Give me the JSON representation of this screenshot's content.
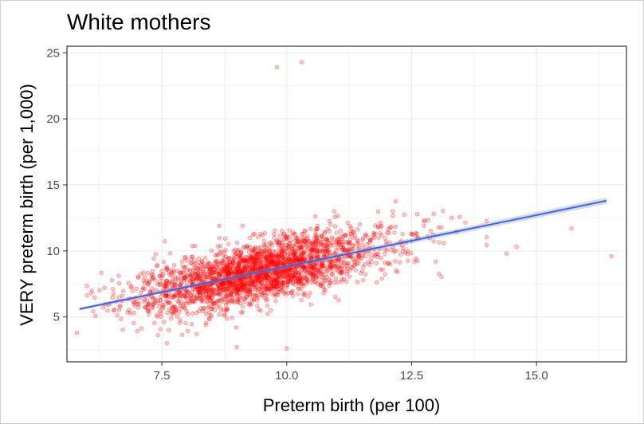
{
  "chart_data": {
    "type": "scatter",
    "title": "White mothers",
    "xlabel": "Preterm birth (per 100)",
    "ylabel": "VERY preterm birth (per 1,000)",
    "xlim": [
      5.6,
      16.8
    ],
    "ylim": [
      1.6,
      25.5
    ],
    "x_ticks": [
      7.5,
      10.0,
      12.5,
      15.0
    ],
    "x_tick_labels": [
      "7.5",
      "10.0",
      "12.5",
      "15.0"
    ],
    "y_ticks": [
      5,
      10,
      15,
      20,
      25
    ],
    "y_tick_labels": [
      "5",
      "10",
      "15",
      "20",
      "25"
    ],
    "grid": true,
    "point_color": "#ff0000",
    "line_color": "#3366ff",
    "trend_line": {
      "x": [
        5.85,
        16.4
      ],
      "y": [
        5.6,
        13.8
      ],
      "method": "linear fit"
    },
    "points_summary": {
      "approx_count": 2500,
      "center_x": 9.3,
      "center_y": 8.5
    },
    "outliers": [
      {
        "x": 9.8,
        "y": 23.9
      },
      {
        "x": 10.3,
        "y": 24.3
      },
      {
        "x": 16.5,
        "y": 9.6
      },
      {
        "x": 15.7,
        "y": 11.7
      },
      {
        "x": 14.6,
        "y": 10.3
      },
      {
        "x": 5.8,
        "y": 3.8
      },
      {
        "x": 9.0,
        "y": 2.7
      },
      {
        "x": 10.0,
        "y": 2.6
      },
      {
        "x": 6.1,
        "y": 7.0
      },
      {
        "x": 13.3,
        "y": 12.5
      },
      {
        "x": 14.4,
        "y": 9.8
      },
      {
        "x": 7.6,
        "y": 3.0
      }
    ]
  }
}
